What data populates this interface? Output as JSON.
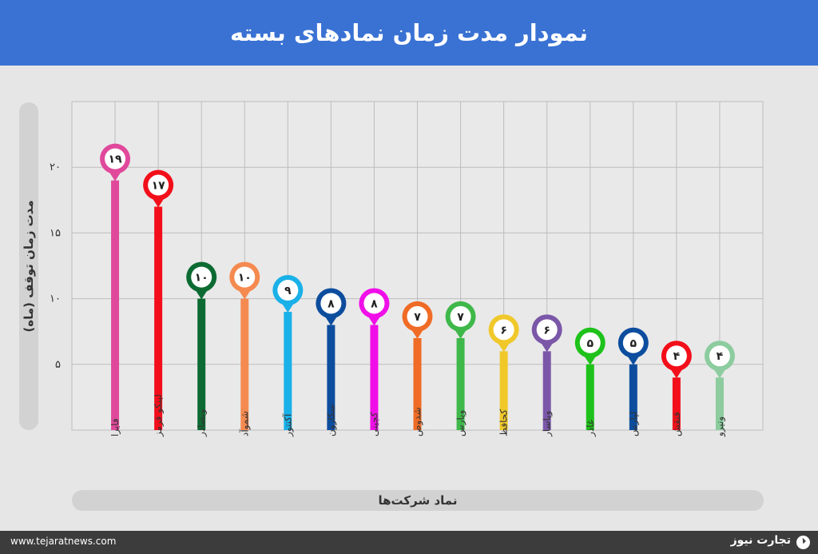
{
  "header": {
    "title": "نمودار مدت زمان نمادهای بسته"
  },
  "footer": {
    "url": "www.tejaratnews.com",
    "brand": "تجارت نیوز"
  },
  "chart_data": {
    "type": "bar",
    "title": "نمودار مدت زمان نمادهای بسته",
    "ylabel": "مدت زمان توقف (ماه)",
    "xlabel": "نماد شرکت‌ها",
    "ylim": [
      0,
      25
    ],
    "yticks": [
      5,
      10,
      15,
      20
    ],
    "ytick_labels": [
      "۵",
      "۱۰",
      "۱۵",
      "۲۰"
    ],
    "grid": true,
    "categories": [
      "فایرا",
      "لبنکو قرمز",
      "وبصادر",
      "شموآد",
      "آکنتور",
      "سکارون",
      "کچینی",
      "شدوص",
      "وپارس",
      "کحافظ",
      "وپاسار",
      "غاذر",
      "لپارس",
      "قنقش",
      "ونیرو"
    ],
    "values": [
      19,
      17,
      10,
      10,
      9,
      8,
      8,
      7,
      7,
      6,
      6,
      5,
      5,
      4,
      4
    ],
    "value_labels": [
      "۱۹",
      "۱۷",
      "۱۰",
      "۱۰",
      "۹",
      "۸",
      "۸",
      "۷",
      "۷",
      "۶",
      "۶",
      "۵",
      "۵",
      "۴",
      "۴"
    ],
    "colors": [
      "#e0499b",
      "#f20f1a",
      "#0c6b32",
      "#f58a50",
      "#1ab0e8",
      "#0d4d9e",
      "#f00fe8",
      "#f06b25",
      "#3fb84a",
      "#f0c82a",
      "#7b57a8",
      "#1ec21a",
      "#0d4d9e",
      "#f20f1a",
      "#8ccc9e"
    ]
  }
}
